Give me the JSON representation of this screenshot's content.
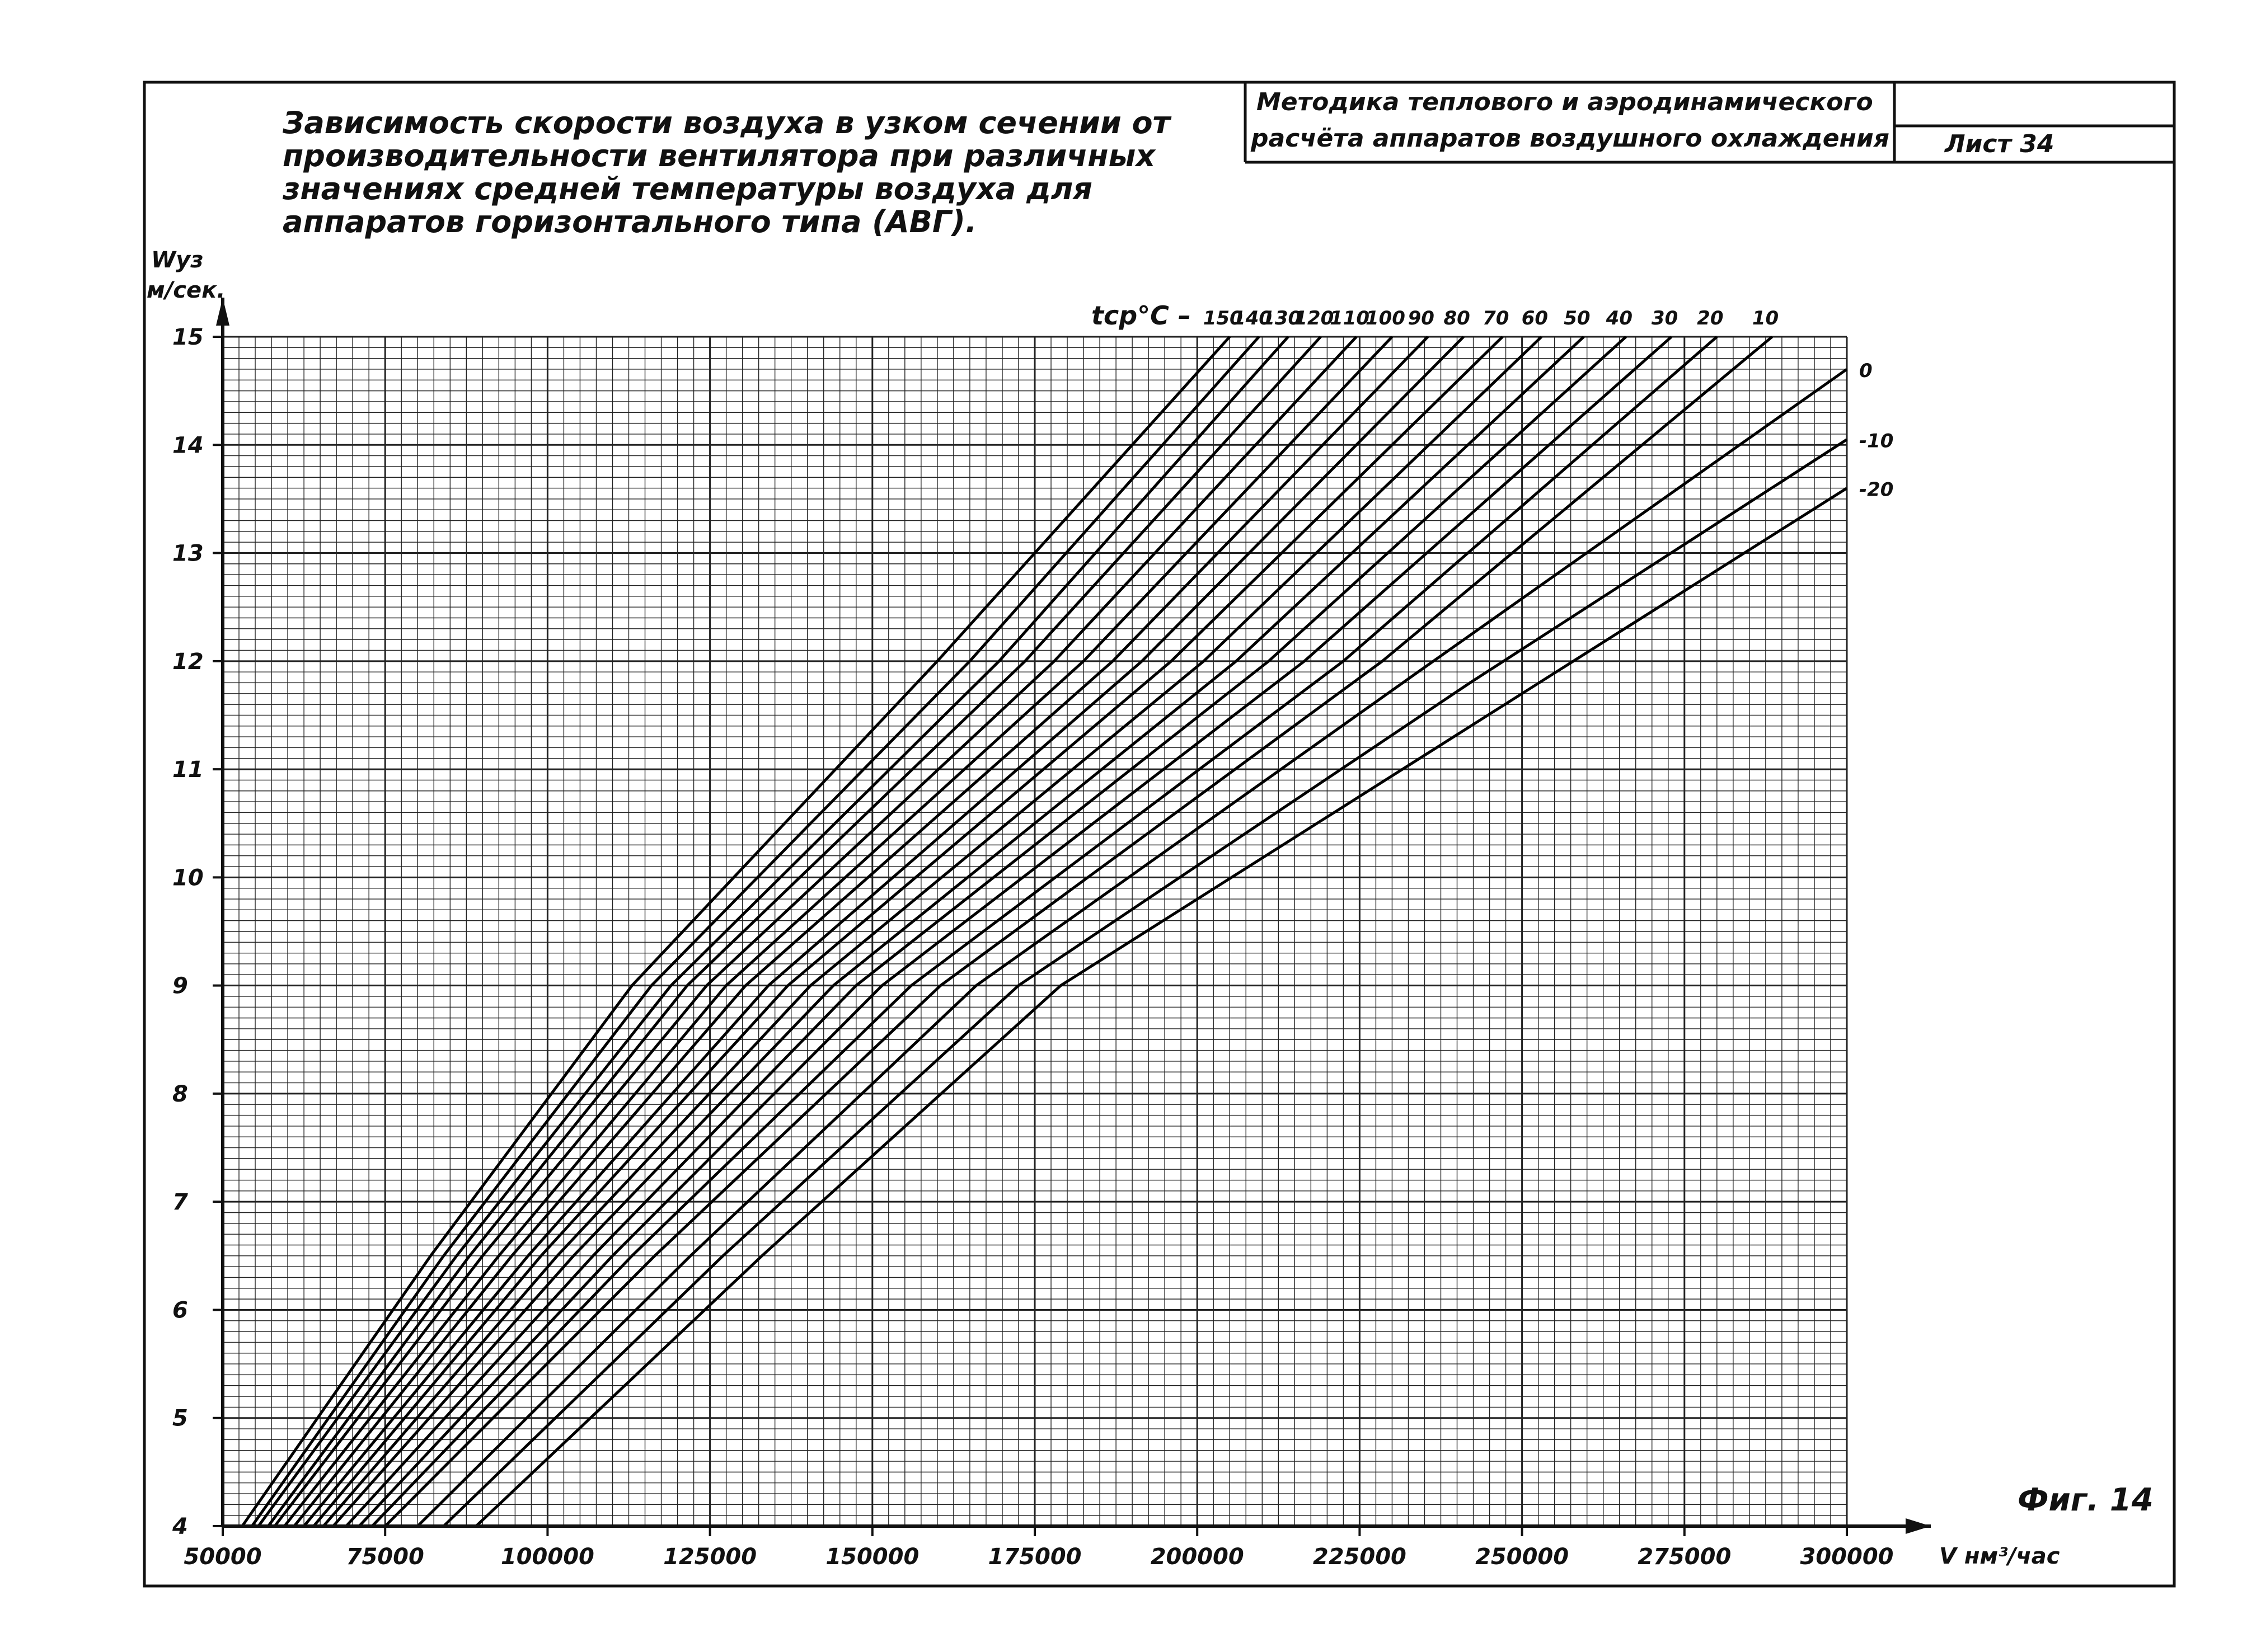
{
  "chart_data": {
    "type": "line",
    "title_lines": [
      "Зависимость скорости воздуха в узком сечении от",
      "производительности вентилятора при различных",
      "значениях средней температуры воздуха для",
      "аппаратов горизонтального типа (АВГ)."
    ],
    "stamp": {
      "line1": "Методика теплового и аэродинамического",
      "line2": "расчёта аппаратов воздушного охлаждения",
      "sheet": "Лист 34"
    },
    "figure_label": "Фиг. 14",
    "ylabel_line1": "Wуз",
    "ylabel_line2": "м/сек.",
    "xlabel": "V нм³/час",
    "legend_prefix": "tср°С –",
    "xlim": [
      50000,
      300000
    ],
    "ylim": [
      4,
      15
    ],
    "x_ticks": [
      50000,
      75000,
      100000,
      125000,
      150000,
      175000,
      200000,
      225000,
      250000,
      275000,
      300000
    ],
    "x_tick_labels": [
      "50000",
      "75000",
      "100000",
      "125000",
      "150000",
      "175000",
      "200000",
      "225000",
      "250000",
      "275000",
      "300000"
    ],
    "y_ticks": [
      4,
      5,
      6,
      7,
      8,
      9,
      10,
      11,
      12,
      13,
      14,
      15
    ],
    "y_tick_labels": [
      "4",
      "5",
      "6",
      "7",
      "8",
      "9",
      "10",
      "11",
      "12",
      "13",
      "14",
      "15"
    ],
    "grid": true,
    "series": [
      {
        "name": "150",
        "label_pos": "top",
        "x": [
          53000,
          82000,
          113000,
          160000,
          205000
        ],
        "y": [
          4.0,
          6.5,
          9.0,
          12.0,
          15.0
        ]
      },
      {
        "name": "140",
        "label_pos": "top",
        "x": [
          54500,
          84000,
          116000,
          165000,
          209500
        ],
        "y": [
          4.0,
          6.5,
          9.0,
          12.0,
          15.0
        ]
      },
      {
        "name": "130",
        "label_pos": "top",
        "x": [
          55500,
          86000,
          119000,
          169500,
          214000
        ],
        "y": [
          4.0,
          6.5,
          9.0,
          12.0,
          15.0
        ]
      },
      {
        "name": "120",
        "label_pos": "top",
        "x": [
          57000,
          88000,
          121500,
          173500,
          219000
        ],
        "y": [
          4.0,
          6.5,
          9.0,
          12.0,
          15.0
        ]
      },
      {
        "name": "110",
        "label_pos": "top",
        "x": [
          58000,
          90000,
          124500,
          178000,
          224500
        ],
        "y": [
          4.0,
          6.5,
          9.0,
          12.0,
          15.0
        ]
      },
      {
        "name": "100",
        "label_pos": "top",
        "x": [
          59500,
          92500,
          127500,
          182500,
          230000
        ],
        "y": [
          4.0,
          6.5,
          9.0,
          12.0,
          15.0
        ]
      },
      {
        "name": "90",
        "label_pos": "top",
        "x": [
          61000,
          94500,
          130500,
          187000,
          235500
        ],
        "y": [
          4.0,
          6.5,
          9.0,
          12.0,
          15.0
        ]
      },
      {
        "name": "80",
        "label_pos": "top",
        "x": [
          62500,
          97000,
          134000,
          191500,
          241000
        ],
        "y": [
          4.0,
          6.5,
          9.0,
          12.0,
          15.0
        ]
      },
      {
        "name": "70",
        "label_pos": "top",
        "x": [
          64000,
          99000,
          137000,
          196000,
          247000
        ],
        "y": [
          4.0,
          6.5,
          9.0,
          12.0,
          15.0
        ]
      },
      {
        "name": "60",
        "label_pos": "top",
        "x": [
          65500,
          101500,
          140500,
          201000,
          253000
        ],
        "y": [
          4.0,
          6.5,
          9.0,
          12.0,
          15.0
        ]
      },
      {
        "name": "50",
        "label_pos": "top",
        "x": [
          67000,
          104000,
          144000,
          206000,
          259500
        ],
        "y": [
          4.0,
          6.5,
          9.0,
          12.0,
          15.0
        ]
      },
      {
        "name": "40",
        "label_pos": "top",
        "x": [
          69000,
          107000,
          147500,
          211000,
          266000
        ],
        "y": [
          4.0,
          6.5,
          9.0,
          12.0,
          15.0
        ]
      },
      {
        "name": "30",
        "label_pos": "top",
        "x": [
          71000,
          110000,
          151500,
          216500,
          273000
        ],
        "y": [
          4.0,
          6.5,
          9.0,
          12.0,
          15.0
        ]
      },
      {
        "name": "20",
        "label_pos": "top",
        "x": [
          73000,
          113000,
          156000,
          222500,
          280000
        ],
        "y": [
          4.0,
          6.5,
          9.0,
          12.0,
          15.0
        ]
      },
      {
        "name": "10",
        "label_pos": "top",
        "x": [
          75000,
          116500,
          160500,
          228500,
          288500
        ],
        "y": [
          4.0,
          6.5,
          9.0,
          12.0,
          15.0
        ]
      },
      {
        "name": "0",
        "label_pos": "right",
        "x": [
          80000,
          122000,
          166000,
          234000,
          300000
        ],
        "y": [
          4.0,
          6.5,
          9.0,
          11.9,
          14.7
        ]
      },
      {
        "name": "-10",
        "label_pos": "right",
        "x": [
          84000,
          127000,
          172500,
          242000,
          300000
        ],
        "y": [
          4.0,
          6.5,
          9.0,
          11.8,
          14.05
        ]
      },
      {
        "name": "-20",
        "label_pos": "right",
        "x": [
          89000,
          133000,
          179000,
          250000,
          300000
        ],
        "y": [
          4.0,
          6.5,
          9.0,
          11.7,
          13.6
        ]
      }
    ]
  }
}
